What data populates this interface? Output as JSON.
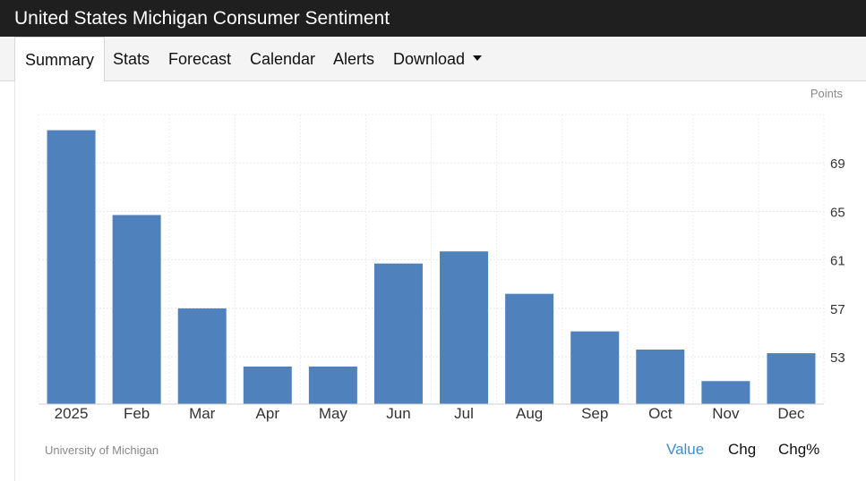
{
  "header": {
    "title": "United States Michigan Consumer Sentiment"
  },
  "tabs": [
    {
      "label": "Summary",
      "active": true
    },
    {
      "label": "Stats"
    },
    {
      "label": "Forecast"
    },
    {
      "label": "Calendar"
    },
    {
      "label": "Alerts"
    },
    {
      "label": "Download",
      "dropdown": true
    }
  ],
  "chart_data": {
    "type": "bar",
    "unit_label": "Points",
    "categories": [
      "2025",
      "Feb",
      "Mar",
      "Apr",
      "May",
      "Jun",
      "Jul",
      "Aug",
      "Sep",
      "Oct",
      "Nov",
      "Dec"
    ],
    "values": [
      71.7,
      64.7,
      57.0,
      52.2,
      52.2,
      60.7,
      61.7,
      58.2,
      55.1,
      53.6,
      51.0,
      53.3
    ],
    "yticks": [
      53,
      57,
      61,
      65,
      69
    ],
    "ylim": [
      49.1,
      73.0
    ],
    "y_axis_side": "right",
    "grid": true,
    "bar_color": "#4f81bd",
    "source": "University of Michigan"
  },
  "footer": {
    "source": "University of Michigan",
    "buttons": [
      {
        "label": "Value",
        "active": true
      },
      {
        "label": "Chg"
      },
      {
        "label": "Chg%"
      }
    ]
  },
  "colors": {
    "titlebar_bg": "#1f1f1f",
    "accent": "#3a8fd0",
    "bar": "#4f81bd"
  }
}
